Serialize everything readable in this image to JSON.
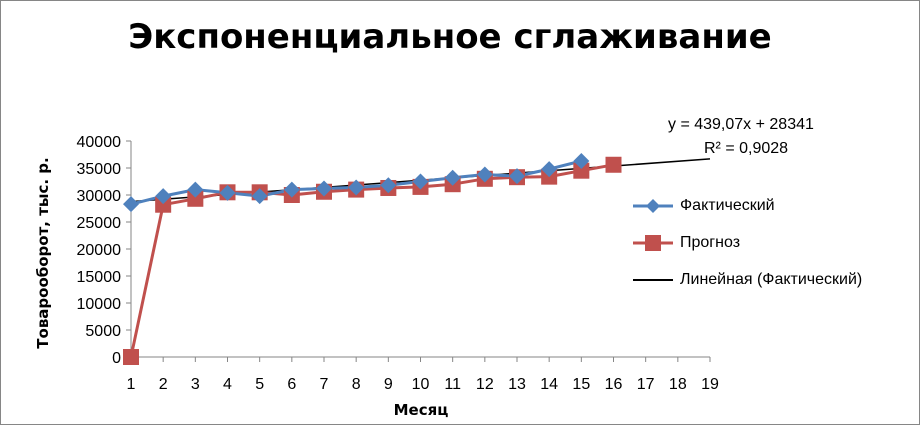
{
  "chart_data": {
    "type": "line",
    "title": "Экспоненциальное сглаживание",
    "xlabel": "Месяц",
    "ylabel": "Товарооборот, тыс. р.",
    "x_ticks": [
      "1",
      "2",
      "3",
      "4",
      "5",
      "6",
      "7",
      "8",
      "9",
      "10",
      "11",
      "12",
      "13",
      "14",
      "15",
      "16",
      "17",
      "18",
      "19"
    ],
    "y_ticks": [
      "0",
      "5000",
      "10000",
      "15000",
      "20000",
      "25000",
      "30000",
      "35000",
      "40000"
    ],
    "xlim": [
      1,
      19
    ],
    "ylim": [
      0,
      40000
    ],
    "legend_position": "right",
    "series": [
      {
        "name": "Фактический",
        "color": "#4F81BD",
        "marker": "diamond",
        "x": [
          1,
          2,
          3,
          4,
          5,
          6,
          7,
          8,
          9,
          10,
          11,
          12,
          13,
          14,
          15
        ],
        "values": [
          28300,
          29800,
          31000,
          30400,
          29800,
          31000,
          31200,
          31400,
          31800,
          32500,
          33200,
          33800,
          33500,
          34800,
          36300
        ]
      },
      {
        "name": "Прогноз",
        "color": "#C0504D",
        "marker": "square",
        "x": [
          1,
          2,
          3,
          4,
          5,
          6,
          7,
          8,
          9,
          10,
          11,
          12,
          13,
          14,
          15,
          16
        ],
        "values": [
          0,
          28200,
          29300,
          30500,
          30500,
          30000,
          30600,
          31000,
          31300,
          31500,
          32000,
          33000,
          33300,
          33400,
          34500,
          35600
        ]
      },
      {
        "name": "Линейная (Фактический)",
        "color": "#000000",
        "marker": "none",
        "type": "trendline",
        "slope": 439.07,
        "intercept": 28341,
        "x_range": [
          1,
          19
        ]
      }
    ],
    "annotations": {
      "equation": "y = 439,07x + 28341",
      "r_squared": "R² = 0,9028"
    }
  }
}
